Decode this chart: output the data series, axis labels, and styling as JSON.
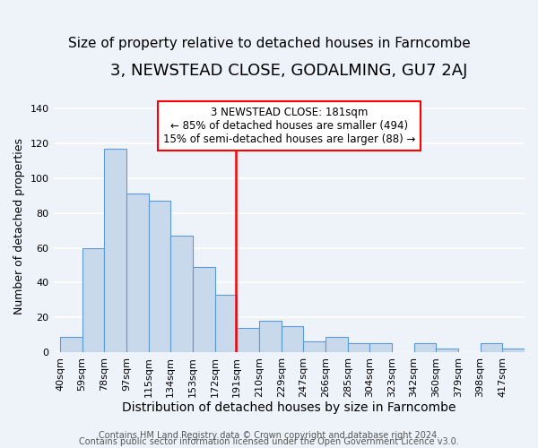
{
  "title": "3, NEWSTEAD CLOSE, GODALMING, GU7 2AJ",
  "subtitle": "Size of property relative to detached houses in Farncombe",
  "xlabel": "Distribution of detached houses by size in Farncombe",
  "ylabel": "Number of detached properties",
  "bar_labels": [
    "40sqm",
    "59sqm",
    "78sqm",
    "97sqm",
    "115sqm",
    "134sqm",
    "153sqm",
    "172sqm",
    "191sqm",
    "210sqm",
    "229sqm",
    "247sqm",
    "266sqm",
    "285sqm",
    "304sqm",
    "323sqm",
    "342sqm",
    "360sqm",
    "379sqm",
    "398sqm",
    "417sqm"
  ],
  "bar_heights": [
    9,
    60,
    117,
    91,
    87,
    67,
    49,
    33,
    14,
    18,
    15,
    6,
    9,
    5,
    5,
    0,
    5,
    2,
    0,
    5,
    2
  ],
  "bar_color": "#c9d9ec",
  "bar_edge_color": "#5b9bd5",
  "ylim": [
    0,
    145
  ],
  "yticks": [
    0,
    20,
    40,
    60,
    80,
    100,
    120,
    140
  ],
  "vline_x": 7.95,
  "vline_color": "red",
  "annotation_title": "3 NEWSTEAD CLOSE: 181sqm",
  "annotation_line1": "← 85% of detached houses are smaller (494)",
  "annotation_line2": "15% of semi-detached houses are larger (88) →",
  "footer1": "Contains HM Land Registry data © Crown copyright and database right 2024.",
  "footer2": "Contains public sector information licensed under the Open Government Licence v3.0.",
  "background_color": "#eef2f9",
  "plot_background_color": "#eef2f9",
  "grid_color": "#ffffff",
  "title_fontsize": 13,
  "subtitle_fontsize": 11,
  "xlabel_fontsize": 10,
  "ylabel_fontsize": 9,
  "tick_fontsize": 8,
  "footer_fontsize": 7
}
